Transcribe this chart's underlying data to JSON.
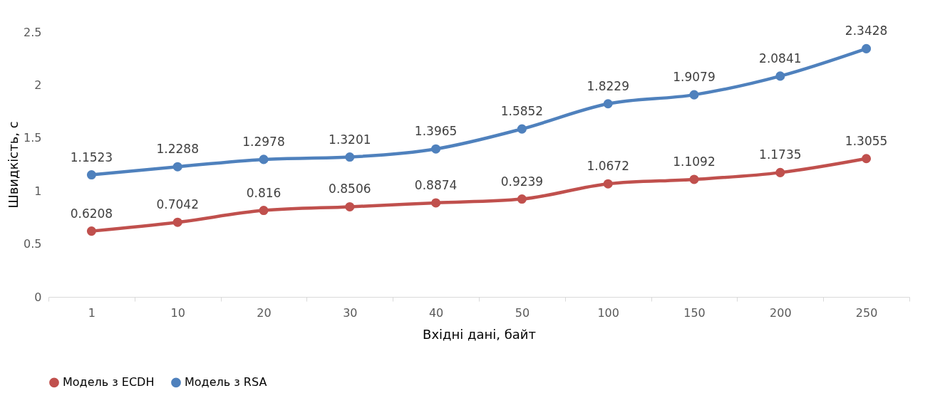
{
  "chart_data": {
    "type": "line",
    "xlabel": "Вхідні дані, байт",
    "ylabel": "Швидкість, с",
    "categories": [
      "1",
      "10",
      "20",
      "30",
      "40",
      "50",
      "100",
      "150",
      "200",
      "250"
    ],
    "series": [
      {
        "name": "Модель з ECDH",
        "color": "#c0504d",
        "values": [
          0.6208,
          0.7042,
          0.816,
          0.8506,
          0.8874,
          0.9239,
          1.0672,
          1.1092,
          1.1735,
          1.3055
        ]
      },
      {
        "name": "Модель з RSA",
        "color": "#4f81bd",
        "values": [
          1.1523,
          1.2288,
          1.2978,
          1.3201,
          1.3965,
          1.5852,
          1.8229,
          1.9079,
          2.0841,
          2.3428
        ]
      }
    ],
    "ylim": [
      0,
      2.5
    ],
    "yticks": [
      0,
      0.5,
      1,
      1.5,
      2,
      2.5
    ],
    "grid": false,
    "legend": "bottom",
    "marker": "circle",
    "line_style": "solid",
    "data_labels": true
  }
}
